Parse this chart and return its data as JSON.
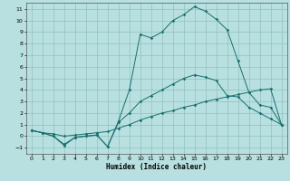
{
  "title": "",
  "xlabel": "Humidex (Indice chaleur)",
  "bg_color": "#b8e0e0",
  "line_color": "#1a6e6e",
  "grid_color": "#90c0c0",
  "xlim": [
    -0.5,
    23.5
  ],
  "ylim": [
    -1.5,
    11.5
  ],
  "xticks": [
    0,
    1,
    2,
    3,
    4,
    5,
    6,
    7,
    8,
    9,
    10,
    11,
    12,
    13,
    14,
    15,
    16,
    17,
    18,
    19,
    20,
    21,
    22,
    23
  ],
  "yticks": [
    -1,
    0,
    1,
    2,
    3,
    4,
    5,
    6,
    7,
    8,
    9,
    10,
    11
  ],
  "line1_x": [
    0,
    1,
    2,
    3,
    4,
    5,
    6,
    7,
    8,
    9,
    10,
    11,
    12,
    13,
    14,
    15,
    16,
    17,
    18,
    19,
    20,
    21,
    22,
    23
  ],
  "line1_y": [
    0.5,
    0.3,
    0.0,
    -0.8,
    -0.1,
    0.0,
    0.1,
    -0.9,
    1.3,
    4.0,
    8.8,
    8.5,
    9.0,
    10.0,
    10.5,
    11.2,
    10.8,
    10.1,
    9.2,
    6.5,
    3.8,
    2.7,
    2.5,
    1.0
  ],
  "line2_x": [
    0,
    1,
    2,
    3,
    4,
    5,
    6,
    7,
    8,
    9,
    10,
    11,
    12,
    13,
    14,
    15,
    16,
    17,
    18,
    19,
    20,
    21,
    22,
    23
  ],
  "line2_y": [
    0.5,
    0.3,
    0.0,
    -0.7,
    -0.1,
    0.0,
    0.1,
    -0.9,
    1.2,
    2.0,
    3.0,
    3.5,
    4.0,
    4.5,
    5.0,
    5.3,
    5.1,
    4.8,
    3.5,
    3.4,
    2.5,
    2.0,
    1.5,
    1.0
  ],
  "line3_x": [
    0,
    1,
    2,
    3,
    4,
    5,
    6,
    7,
    8,
    9,
    10,
    11,
    12,
    13,
    14,
    15,
    16,
    17,
    18,
    19,
    20,
    21,
    22,
    23
  ],
  "line3_y": [
    0.5,
    0.3,
    0.2,
    0.0,
    0.1,
    0.2,
    0.3,
    0.4,
    0.7,
    1.0,
    1.4,
    1.7,
    2.0,
    2.2,
    2.5,
    2.7,
    3.0,
    3.2,
    3.4,
    3.6,
    3.8,
    4.0,
    4.1,
    1.0
  ]
}
